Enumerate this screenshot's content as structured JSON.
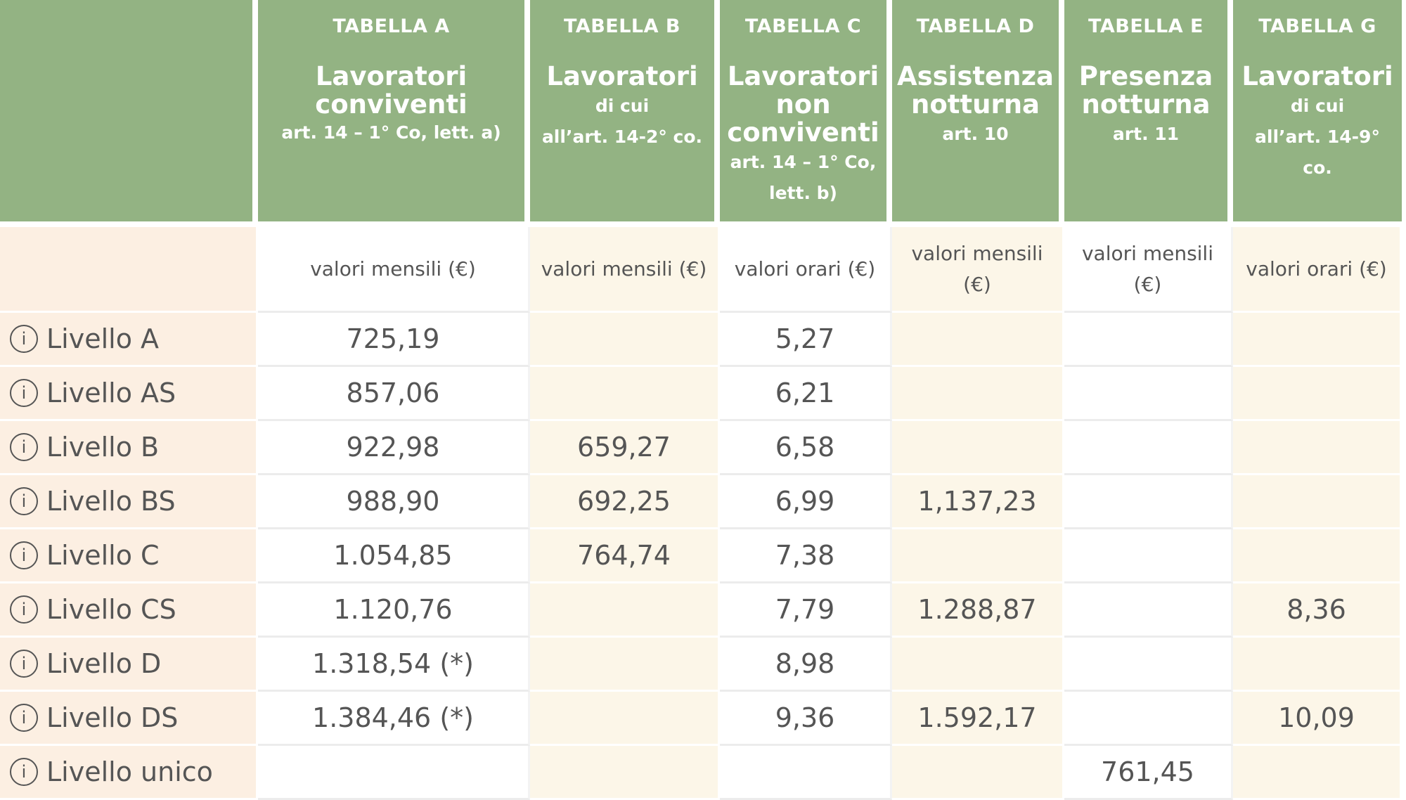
{
  "columns": [
    {
      "tab": "TABELLA A",
      "title": "Lavoratori conviventi",
      "note": "art. 14 – 1° Co, lett. a)",
      "unit": "valori mensili (€)"
    },
    {
      "tab": "TABELLA B",
      "title": "Lavoratori",
      "note1": "di cui",
      "note2": "all’art. 14-2° co.",
      "unit": "valori mensili (€)"
    },
    {
      "tab": "TABELLA C",
      "title1": "Lavoratori",
      "title2": "non",
      "title3": "conviventi",
      "note1": "art. 14 – 1° Co,",
      "note2": "lett. b)",
      "unit": "valori orari (€)"
    },
    {
      "tab": "TABELLA D",
      "title1": "Assistenza",
      "title2": "notturna",
      "note": "art. 10",
      "unit1": "valori mensili",
      "unit2": "(€)"
    },
    {
      "tab": "TABELLA E",
      "title1": "Presenza",
      "title2": "notturna",
      "note": "art. 11",
      "unit1": "valori mensili",
      "unit2": "(€)"
    },
    {
      "tab": "TABELLA G",
      "title": "Lavoratori",
      "note1": "di cui",
      "note2": "all’art. 14-9°",
      "note3": "co.",
      "unit": "valori orari (€)"
    }
  ],
  "rows": [
    {
      "label": "Livello A",
      "a": "725,19",
      "b": "",
      "c": "5,27",
      "d": "",
      "e": "",
      "g": ""
    },
    {
      "label": "Livello AS",
      "a": "857,06",
      "b": "",
      "c": "6,21",
      "d": "",
      "e": "",
      "g": ""
    },
    {
      "label": "Livello B",
      "a": "922,98",
      "b": "659,27",
      "c": "6,58",
      "d": "",
      "e": "",
      "g": ""
    },
    {
      "label": "Livello BS",
      "a": "988,90",
      "b": "692,25",
      "c": "6,99",
      "d": "1,137,23",
      "e": "",
      "g": ""
    },
    {
      "label": "Livello C",
      "a": "1.054,85",
      "b": "764,74",
      "c": "7,38",
      "d": "",
      "e": "",
      "g": ""
    },
    {
      "label": "Livello CS",
      "a": "1.120,76",
      "b": "",
      "c": "7,79",
      "d": "1.288,87",
      "e": "",
      "g": "8,36"
    },
    {
      "label": "Livello D",
      "a": "1.318,54 (*)",
      "b": "",
      "c": "8,98",
      "d": "",
      "e": "",
      "g": ""
    },
    {
      "label": "Livello DS",
      "a": "1.384,46 (*)",
      "b": "",
      "c": "9,36",
      "d": "1.592,17",
      "e": "",
      "g": "10,09"
    },
    {
      "label": "Livello unico",
      "a": "",
      "b": "",
      "c": "",
      "d": "",
      "e": "761,45",
      "g": ""
    }
  ],
  "info_icon": "info-circle-icon",
  "colors": {
    "header_green": "#93b383",
    "label_peach": "#fcefe2",
    "cream": "#fcf6e8"
  }
}
